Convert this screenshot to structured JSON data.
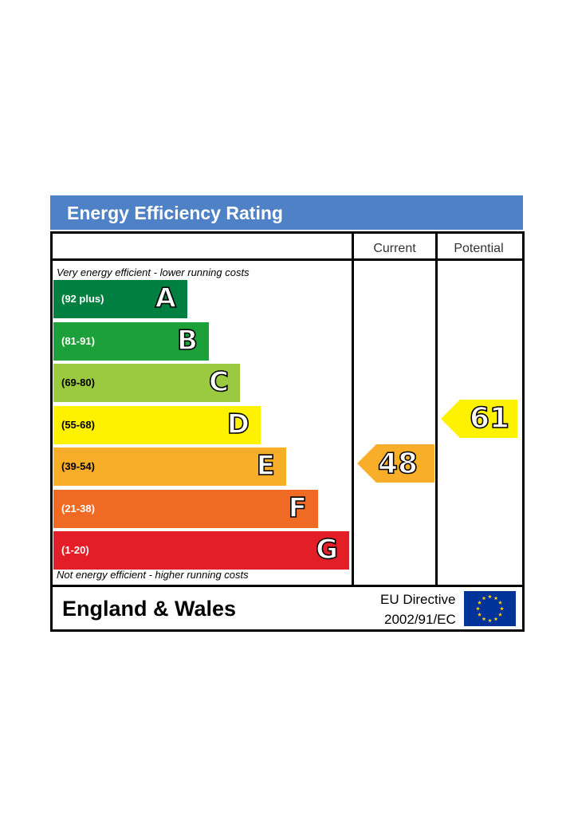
{
  "title": "Energy Efficiency Rating",
  "columns": {
    "current": "Current",
    "potential": "Potential"
  },
  "top_note": "Very energy efficient - lower running costs",
  "bottom_note": "Not energy efficient - higher running costs",
  "region": "England & Wales",
  "directive": {
    "line1": "EU Directive",
    "line2": "2002/91/EC"
  },
  "colors": {
    "banner": "#4f81c7",
    "A": "#008040",
    "B": "#1ba03a",
    "C": "#9bc93f",
    "D": "#fff200",
    "E": "#f9ae2a",
    "F": "#ef6b24",
    "G": "#e41e26",
    "flag_blue": "#003399",
    "flag_star": "#ffd200"
  },
  "chart_data": {
    "type": "bar",
    "categories": [
      "A",
      "B",
      "C",
      "D",
      "E",
      "F",
      "G"
    ],
    "ranges": [
      "(92 plus)",
      "(81-91)",
      "(69-80)",
      "(55-68)",
      "(39-54)",
      "(21-38)",
      "(1-20)"
    ],
    "current": {
      "value": "48",
      "band": "E"
    },
    "potential": {
      "value": "61",
      "band": "D"
    }
  }
}
